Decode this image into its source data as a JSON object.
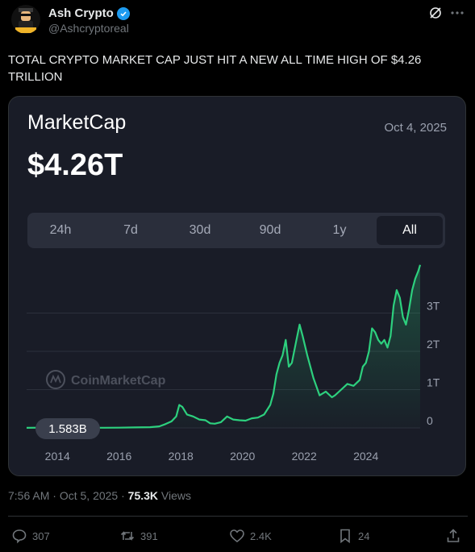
{
  "author": {
    "name": "Ash Crypto",
    "handle": "@Ashcryptoreal",
    "avatar_caption": "ASH CRYPTO"
  },
  "tweet": {
    "text": "TOTAL CRYPTO MARKET CAP JUST HIT A NEW ALL TIME HIGH OF $4.26 TRILLION"
  },
  "card": {
    "title": "MarketCap",
    "date": "Oct 4, 2025",
    "value": "$4.26T",
    "ranges": [
      "24h",
      "7d",
      "30d",
      "90d",
      "1y",
      "All"
    ],
    "active_range": "All",
    "watermark": "CoinMarketCap",
    "start_label": "1.583B"
  },
  "chart_data": {
    "type": "area",
    "x": [
      2013.0,
      2013.5,
      2014.0,
      2014.5,
      2015.0,
      2015.5,
      2016.0,
      2016.5,
      2017.0,
      2017.3,
      2017.5,
      2017.7,
      2017.85,
      2017.95,
      2018.05,
      2018.2,
      2018.4,
      2018.6,
      2018.8,
      2018.95,
      2019.1,
      2019.3,
      2019.5,
      2019.7,
      2019.9,
      2020.1,
      2020.3,
      2020.5,
      2020.7,
      2020.9,
      2021.0,
      2021.1,
      2021.2,
      2021.3,
      2021.4,
      2021.5,
      2021.6,
      2021.75,
      2021.85,
      2021.95,
      2022.1,
      2022.3,
      2022.5,
      2022.7,
      2022.9,
      2023.0,
      2023.2,
      2023.4,
      2023.6,
      2023.8,
      2023.9,
      2024.0,
      2024.1,
      2024.2,
      2024.3,
      2024.4,
      2024.5,
      2024.6,
      2024.7,
      2024.8,
      2024.9,
      2025.0,
      2025.1,
      2025.2,
      2025.3,
      2025.4,
      2025.5,
      2025.6,
      2025.7,
      2025.76
    ],
    "values": [
      0.0016,
      0.006,
      0.01,
      0.009,
      0.005,
      0.004,
      0.007,
      0.012,
      0.02,
      0.04,
      0.1,
      0.17,
      0.3,
      0.6,
      0.55,
      0.35,
      0.3,
      0.22,
      0.2,
      0.12,
      0.11,
      0.15,
      0.3,
      0.22,
      0.2,
      0.19,
      0.25,
      0.27,
      0.35,
      0.6,
      0.9,
      1.4,
      1.7,
      1.9,
      2.3,
      1.6,
      1.7,
      2.3,
      2.7,
      2.4,
      1.9,
      1.3,
      0.85,
      0.95,
      0.8,
      0.85,
      1.0,
      1.15,
      1.1,
      1.25,
      1.6,
      1.7,
      2.0,
      2.6,
      2.5,
      2.3,
      2.2,
      2.3,
      2.1,
      2.4,
      3.2,
      3.6,
      3.4,
      2.9,
      2.7,
      3.1,
      3.6,
      3.9,
      4.1,
      4.26
    ],
    "y_ticks": [
      "0",
      "1T",
      "2T",
      "3T"
    ],
    "x_ticks": [
      "2014",
      "2016",
      "2018",
      "2020",
      "2022",
      "2024"
    ],
    "x_tick_values": [
      2014,
      2016,
      2018,
      2020,
      2022,
      2024
    ],
    "xlim": [
      2013.0,
      2025.76
    ],
    "ylim": [
      0,
      4.26
    ],
    "grid": true,
    "line_color": "#2dd07e"
  },
  "footer": {
    "time": "7:56 AM",
    "date": "Oct 5, 2025",
    "views_count": "75.3K",
    "views_label": "Views",
    "replies": "307",
    "reposts": "391",
    "likes": "2.4K",
    "bookmarks": "24"
  }
}
